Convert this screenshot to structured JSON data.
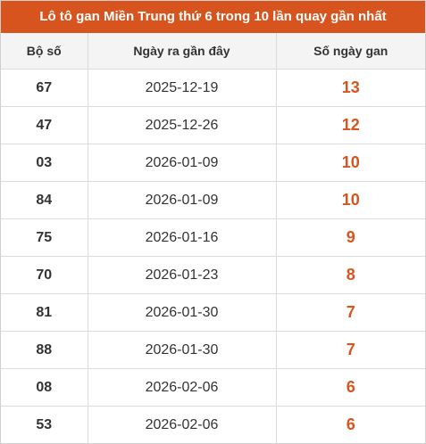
{
  "title": "Lô tô gan Miền Trung thứ 6 trong 10 lần quay gần nhất",
  "table": {
    "header": [
      "Bộ số",
      "Ngày ra gần đây",
      "Số ngày gan"
    ],
    "rows": [
      [
        "67",
        "2025-12-19",
        13
      ],
      [
        "47",
        "2025-12-26",
        12
      ],
      [
        "03",
        "2026-01-09",
        10
      ],
      [
        "84",
        "2026-01-09",
        10
      ],
      [
        "75",
        "2026-01-16",
        9
      ],
      [
        "70",
        "2026-01-23",
        8
      ],
      [
        "81",
        "2026-01-30",
        7
      ],
      [
        "88",
        "2026-01-30",
        7
      ],
      [
        "08",
        "2026-02-06",
        6
      ],
      [
        "53",
        "2026-02-06",
        6
      ]
    ]
  }
}
